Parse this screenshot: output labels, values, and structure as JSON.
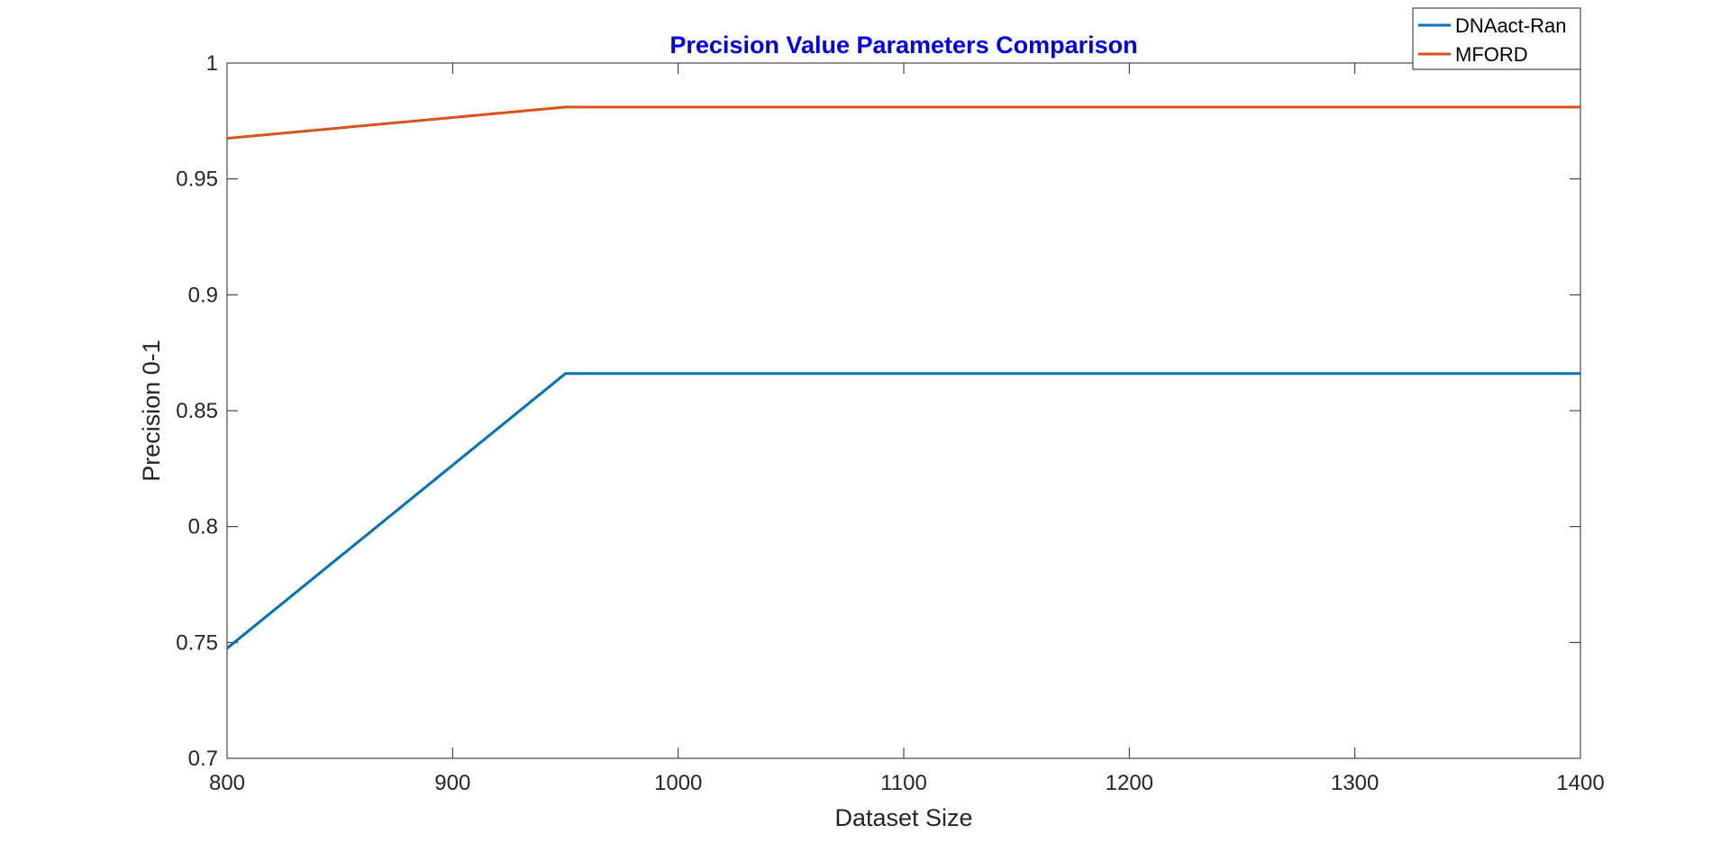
{
  "chart_data": {
    "type": "line",
    "title": "Precision Value Parameters Comparison",
    "xlabel": "Dataset Size",
    "ylabel": "Precision 0-1",
    "xlim": [
      800,
      1400
    ],
    "ylim": [
      0.7,
      1.0
    ],
    "x_ticks": [
      800,
      900,
      1000,
      1100,
      1200,
      1300,
      1400
    ],
    "x_tick_labels": [
      "800",
      "900",
      "1000",
      "1100",
      "1200",
      "1300",
      "1400"
    ],
    "y_ticks": [
      0.7,
      0.75,
      0.8,
      0.85,
      0.9,
      0.95,
      1.0
    ],
    "y_tick_labels": [
      "0.7",
      "0.75",
      "0.8",
      "0.85",
      "0.9",
      "0.95",
      "1"
    ],
    "grid": false,
    "legend_position": "top-right",
    "series": [
      {
        "name": "DNAact-Ran",
        "color": "#0072BD",
        "x": [
          800,
          950,
          1400
        ],
        "y": [
          0.7475,
          0.866,
          0.866
        ]
      },
      {
        "name": "MFORD",
        "color": "#D95319",
        "x": [
          800,
          950,
          1400
        ],
        "y": [
          0.9675,
          0.981,
          0.981
        ]
      }
    ],
    "title_color": "#0000EE",
    "axis_color": "#262626"
  }
}
